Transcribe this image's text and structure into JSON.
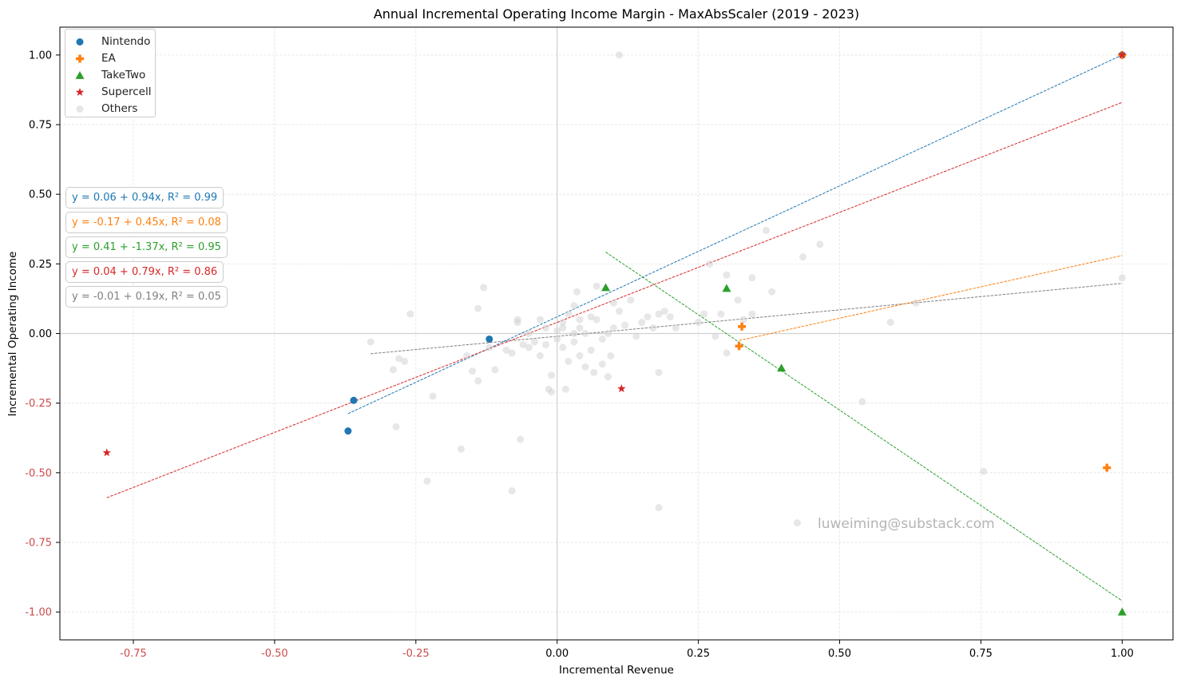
{
  "chart_data": {
    "type": "scatter",
    "title": "Annual Incremental Operating Income Margin - MaxAbsScaler (2019 - 2023)",
    "xlabel": "Incremental Revenue",
    "ylabel": "Incremental Operating Income",
    "xlim": [
      -0.88,
      1.09
    ],
    "ylim": [
      -1.1,
      1.1
    ],
    "xticks": [
      -0.75,
      -0.5,
      -0.25,
      0.0,
      0.25,
      0.5,
      0.75,
      1.0
    ],
    "xtick_labels": [
      "-0.75",
      "-0.50",
      "-0.25",
      "0.00",
      "0.25",
      "0.50",
      "0.75",
      "1.00"
    ],
    "yticks": [
      -1.0,
      -0.75,
      -0.5,
      -0.25,
      0.0,
      0.25,
      0.5,
      0.75,
      1.0
    ],
    "ytick_labels": [
      "-1.00",
      "-0.75",
      "-0.50",
      "-0.25",
      "0.00",
      "0.25",
      "0.50",
      "0.75",
      "1.00"
    ],
    "negative_tick_color": "#cd4b4b",
    "grid": true,
    "legend_position": "top-left",
    "series": [
      {
        "name": "Nintendo",
        "marker": "circle",
        "color": "#1f77b4",
        "points": [
          [
            -0.36,
            -0.24
          ],
          [
            -0.37,
            -0.35
          ],
          [
            -0.12,
            -0.02
          ],
          [
            1.0,
            1.0
          ]
        ],
        "fit": {
          "label": "y = 0.06 + 0.94x, R² = 0.99",
          "intercept": 0.06,
          "slope": 0.94,
          "x_range": [
            -0.37,
            1.0
          ]
        }
      },
      {
        "name": "EA",
        "marker": "plus",
        "color": "#ff7f0e",
        "points": [
          [
            0.327,
            0.025
          ],
          [
            0.322,
            -0.045
          ],
          [
            0.973,
            -0.482
          ],
          [
            1.0,
            1.0
          ]
        ],
        "fit": {
          "label": "y = -0.17 + 0.45x, R² = 0.08",
          "intercept": -0.17,
          "slope": 0.45,
          "x_range": [
            0.322,
            1.0
          ]
        }
      },
      {
        "name": "TakeTwo",
        "marker": "triangle",
        "color": "#2ca02c",
        "points": [
          [
            0.086,
            0.165
          ],
          [
            0.3,
            0.162
          ],
          [
            0.397,
            -0.124
          ],
          [
            1.0,
            -1.0
          ]
        ],
        "fit": {
          "label": "y = 0.41 + -1.37x, R² = 0.95",
          "intercept": 0.41,
          "slope": -1.37,
          "x_range": [
            0.086,
            1.0
          ]
        }
      },
      {
        "name": "Supercell",
        "marker": "star",
        "color": "#d62728",
        "points": [
          [
            -0.797,
            -0.428
          ],
          [
            0.114,
            -0.198
          ],
          [
            1.0,
            1.0
          ]
        ],
        "fit": {
          "label": "y = 0.04 + 0.79x, R² = 0.86",
          "intercept": 0.04,
          "slope": 0.79,
          "x_range": [
            -0.797,
            1.0
          ]
        }
      },
      {
        "name": "Others",
        "marker": "circle",
        "color": "#d3d3d3",
        "points": [
          [
            0.11,
            1.0
          ],
          [
            -0.33,
            -0.03
          ],
          [
            -0.26,
            0.07
          ],
          [
            -0.29,
            -0.13
          ],
          [
            -0.28,
            -0.09
          ],
          [
            -0.27,
            -0.1
          ],
          [
            -0.285,
            -0.335
          ],
          [
            -0.22,
            -0.225
          ],
          [
            -0.17,
            -0.415
          ],
          [
            -0.23,
            -0.53
          ],
          [
            -0.14,
            0.09
          ],
          [
            -0.13,
            0.165
          ],
          [
            -0.15,
            -0.135
          ],
          [
            -0.16,
            -0.08
          ],
          [
            -0.14,
            -0.17
          ],
          [
            -0.12,
            -0.05
          ],
          [
            -0.11,
            -0.13
          ],
          [
            -0.09,
            -0.06
          ],
          [
            -0.08,
            -0.07
          ],
          [
            -0.07,
            0.04
          ],
          [
            -0.07,
            0.05
          ],
          [
            -0.06,
            -0.04
          ],
          [
            -0.065,
            -0.38
          ],
          [
            -0.08,
            -0.565
          ],
          [
            -0.05,
            0.0
          ],
          [
            -0.05,
            -0.05
          ],
          [
            -0.04,
            -0.03
          ],
          [
            -0.03,
            0.05
          ],
          [
            -0.03,
            -0.08
          ],
          [
            -0.02,
            -0.04
          ],
          [
            -0.02,
            0.02
          ],
          [
            -0.015,
            -0.2
          ],
          [
            -0.01,
            -0.21
          ],
          [
            -0.01,
            -0.15
          ],
          [
            0.0,
            0.01
          ],
          [
            0.0,
            -0.02
          ],
          [
            0.01,
            0.02
          ],
          [
            0.01,
            0.04
          ],
          [
            0.01,
            -0.05
          ],
          [
            0.015,
            -0.2
          ],
          [
            0.02,
            -0.1
          ],
          [
            0.02,
            0.07
          ],
          [
            0.03,
            0.0
          ],
          [
            0.03,
            -0.03
          ],
          [
            0.03,
            0.1
          ],
          [
            0.035,
            0.15
          ],
          [
            0.04,
            -0.08
          ],
          [
            0.04,
            0.02
          ],
          [
            0.04,
            0.05
          ],
          [
            0.05,
            -0.12
          ],
          [
            0.05,
            0.0
          ],
          [
            0.06,
            0.06
          ],
          [
            0.06,
            -0.06
          ],
          [
            0.065,
            -0.14
          ],
          [
            0.07,
            0.17
          ],
          [
            0.07,
            0.05
          ],
          [
            0.08,
            -0.02
          ],
          [
            0.08,
            -0.11
          ],
          [
            0.09,
            0.0
          ],
          [
            0.09,
            -0.155
          ],
          [
            0.095,
            -0.08
          ],
          [
            0.1,
            0.02
          ],
          [
            0.1,
            0.11
          ],
          [
            0.11,
            0.08
          ],
          [
            0.12,
            0.03
          ],
          [
            0.13,
            0.12
          ],
          [
            0.14,
            -0.01
          ],
          [
            0.15,
            0.04
          ],
          [
            0.16,
            0.06
          ],
          [
            0.17,
            0.02
          ],
          [
            0.18,
            -0.14
          ],
          [
            0.18,
            0.07
          ],
          [
            0.19,
            0.08
          ],
          [
            0.2,
            0.06
          ],
          [
            0.21,
            0.02
          ],
          [
            0.18,
            -0.625
          ],
          [
            0.25,
            0.04
          ],
          [
            0.26,
            0.07
          ],
          [
            0.27,
            0.25
          ],
          [
            0.28,
            -0.01
          ],
          [
            0.29,
            0.07
          ],
          [
            0.3,
            0.21
          ],
          [
            0.3,
            -0.07
          ],
          [
            0.32,
            0.12
          ],
          [
            0.33,
            0.05
          ],
          [
            0.345,
            0.2
          ],
          [
            0.345,
            0.07
          ],
          [
            0.37,
            0.37
          ],
          [
            0.38,
            0.15
          ],
          [
            0.435,
            0.275
          ],
          [
            0.465,
            0.32
          ],
          [
            0.59,
            0.04
          ],
          [
            0.54,
            -0.245
          ],
          [
            0.635,
            0.11
          ],
          [
            0.755,
            -0.495
          ],
          [
            0.425,
            -0.68
          ],
          [
            1.0,
            0.2
          ]
        ],
        "fit": {
          "label": "y = -0.01 + 0.19x, R² = 0.05",
          "intercept": -0.01,
          "slope": 0.19,
          "x_range": [
            -0.33,
            1.0
          ]
        }
      }
    ],
    "annotations": [
      "luweiming@substack.com"
    ]
  },
  "watermark": "luweiming@substack.com"
}
